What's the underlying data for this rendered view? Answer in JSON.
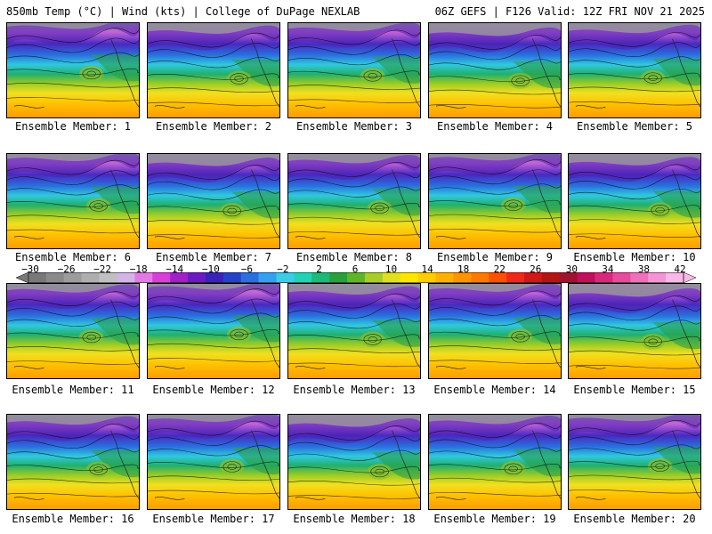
{
  "header": {
    "left": "850mb Temp (°C) | Wind (kts) | College of DuPage NEXLAB",
    "right": "06Z GEFS | F126 Valid: 12Z FRI NOV 21 2025"
  },
  "members": [
    "Ensemble Member: 1",
    "Ensemble Member: 2",
    "Ensemble Member: 3",
    "Ensemble Member: 4",
    "Ensemble Member: 5",
    "Ensemble Member: 6",
    "Ensemble Member: 7",
    "Ensemble Member: 8",
    "Ensemble Member: 9",
    "Ensemble Member: 10",
    "Ensemble Member: 11",
    "Ensemble Member: 12",
    "Ensemble Member: 13",
    "Ensemble Member: 14",
    "Ensemble Member: 15",
    "Ensemble Member: 16",
    "Ensemble Member: 17",
    "Ensemble Member: 18",
    "Ensemble Member: 19",
    "Ensemble Member: 20"
  ],
  "colorbar": {
    "ticks": [
      "−30",
      "−26",
      "−22",
      "−18",
      "−14",
      "−10",
      "−6",
      "−2",
      "2",
      "6",
      "10",
      "14",
      "18",
      "22",
      "26",
      "30",
      "34",
      "38",
      "42"
    ],
    "colors": [
      "#787878",
      "#8a8a8a",
      "#9c9c9c",
      "#aeaeae",
      "#c0c0c0",
      "#d2b4e6",
      "#e27ae6",
      "#d83ed8",
      "#a020c8",
      "#6a1ac0",
      "#3a22b8",
      "#2442c8",
      "#2a6ee0",
      "#36a0f0",
      "#3ccce8",
      "#22d2b4",
      "#1eb878",
      "#28a03c",
      "#60b428",
      "#a8cc28",
      "#e0e020",
      "#ffe600",
      "#ffcc00",
      "#ffb000",
      "#ff9400",
      "#ff7800",
      "#ff5000",
      "#f02818",
      "#d01818",
      "#b41414",
      "#a01230",
      "#c0105a",
      "#d8287c",
      "#e84a9c",
      "#f070bc",
      "#f494d6",
      "#f8b8e8"
    ]
  }
}
